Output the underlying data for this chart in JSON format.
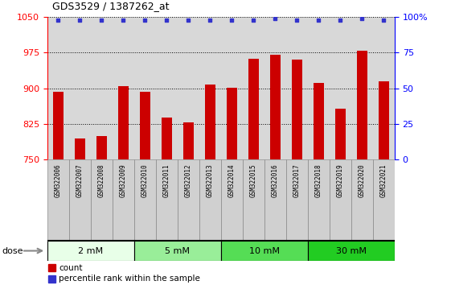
{
  "title": "GDS3529 / 1387262_at",
  "samples": [
    "GSM322006",
    "GSM322007",
    "GSM322008",
    "GSM322009",
    "GSM322010",
    "GSM322011",
    "GSM322012",
    "GSM322013",
    "GSM322014",
    "GSM322015",
    "GSM322016",
    "GSM322017",
    "GSM322018",
    "GSM322019",
    "GSM322020",
    "GSM322021"
  ],
  "bar_values": [
    892,
    795,
    800,
    905,
    892,
    838,
    828,
    908,
    902,
    962,
    970,
    960,
    912,
    858,
    980,
    915
  ],
  "percentile_values": [
    98,
    98,
    98,
    98,
    98,
    98,
    98,
    98,
    98,
    98,
    99,
    98,
    98,
    98,
    99,
    98
  ],
  "bar_color": "#cc0000",
  "dot_color": "#3333cc",
  "ylim_left": [
    750,
    1050
  ],
  "ylim_right": [
    0,
    100
  ],
  "yticks_left": [
    750,
    825,
    900,
    975,
    1050
  ],
  "yticks_right": [
    0,
    25,
    50,
    75,
    100
  ],
  "dose_groups": [
    {
      "label": "2 mM",
      "start": 0,
      "end": 4
    },
    {
      "label": "5 mM",
      "start": 4,
      "end": 8
    },
    {
      "label": "10 mM",
      "start": 8,
      "end": 12
    },
    {
      "label": "30 mM",
      "start": 12,
      "end": 16
    }
  ],
  "dose_colors": [
    "#e8ffe8",
    "#99ee99",
    "#55dd55",
    "#22cc22"
  ],
  "legend_bar_label": "count",
  "legend_dot_label": "percentile rank within the sample",
  "xlabel_dose": "dose",
  "background_plot": "#d8d8d8",
  "background_xtick": "#d0d0d0",
  "background_fig": "#ffffff",
  "grid_color": "#000000",
  "grid_linestyle": ":",
  "grid_linewidth": 0.7,
  "bar_width": 0.5,
  "dot_size": 12
}
